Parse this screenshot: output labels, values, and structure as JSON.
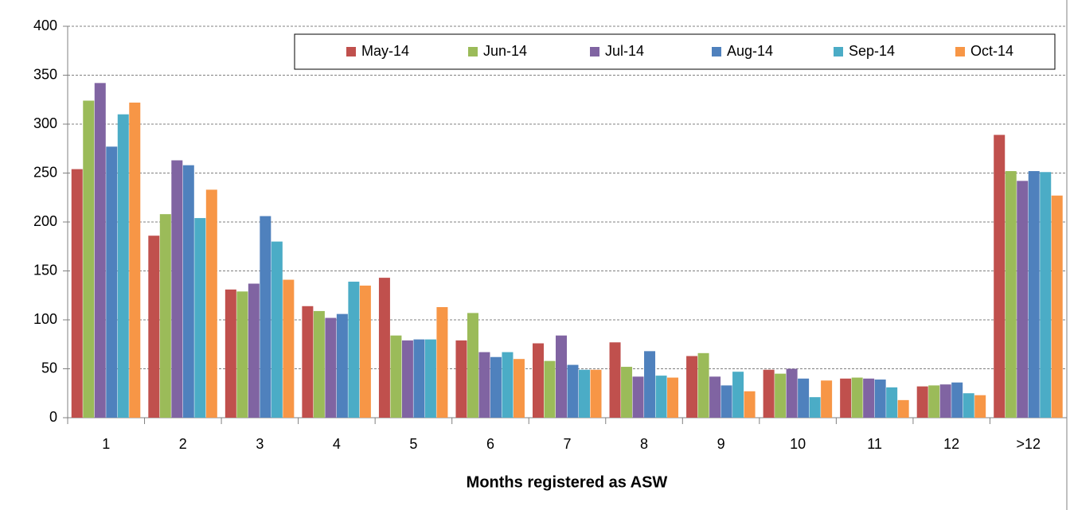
{
  "chart_data": {
    "type": "bar",
    "x_label": "Months registered as ASW",
    "categories": [
      "1",
      "2",
      "3",
      "4",
      "5",
      "6",
      "7",
      "8",
      "9",
      "10",
      "11",
      "12",
      ">12"
    ],
    "series": [
      {
        "name": "May-14",
        "color": "#c0504d",
        "values": [
          254,
          186,
          131,
          114,
          143,
          79,
          76,
          77,
          63,
          49,
          40,
          32,
          289
        ]
      },
      {
        "name": "Jun-14",
        "color": "#9bbb59",
        "values": [
          324,
          208,
          129,
          109,
          84,
          107,
          58,
          52,
          66,
          45,
          41,
          33,
          252
        ]
      },
      {
        "name": "Jul-14",
        "color": "#8064a2",
        "values": [
          342,
          263,
          137,
          102,
          79,
          67,
          84,
          42,
          42,
          50,
          40,
          34,
          242
        ]
      },
      {
        "name": "Aug-14",
        "color": "#4f81bd",
        "values": [
          277,
          258,
          206,
          106,
          80,
          62,
          54,
          68,
          33,
          40,
          39,
          36,
          252
        ]
      },
      {
        "name": "Sep-14",
        "color": "#4bacc6",
        "values": [
          310,
          204,
          180,
          139,
          80,
          67,
          49,
          43,
          47,
          21,
          31,
          25,
          251
        ]
      },
      {
        "name": "Oct-14",
        "color": "#f79646",
        "values": [
          322,
          233,
          141,
          135,
          113,
          60,
          49,
          41,
          27,
          38,
          18,
          23,
          227
        ]
      }
    ],
    "ylim": [
      0,
      400
    ],
    "yticks": [
      0,
      50,
      100,
      150,
      200,
      250,
      300,
      350,
      400
    ],
    "grid": true,
    "legend": "top-right"
  }
}
